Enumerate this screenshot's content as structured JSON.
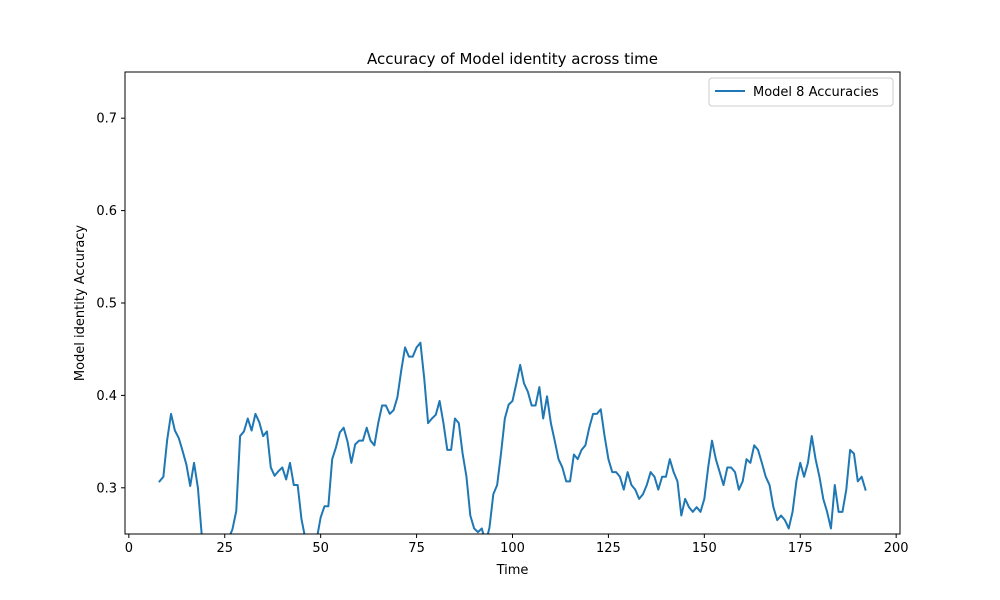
{
  "chart_data": {
    "type": "line",
    "title": "Accuracy of Model identity across time",
    "xlabel": "Time",
    "ylabel": "Model identity Accuracy",
    "xlim": [
      -1,
      201
    ],
    "ylim": [
      0.25,
      0.75
    ],
    "xticks": [
      0,
      25,
      50,
      75,
      100,
      125,
      150,
      175,
      200
    ],
    "yticks": [
      0.3,
      0.4,
      0.5,
      0.6,
      0.7
    ],
    "grid": false,
    "legend_position": "top-right",
    "series": [
      {
        "name": "Model 8 Accuracies",
        "color": "#1f77b4",
        "x": [
          8,
          9,
          10,
          11,
          12,
          13,
          14,
          15,
          16,
          17,
          18,
          19,
          20,
          21,
          22,
          23,
          24,
          25,
          26,
          27,
          28,
          29,
          30,
          31,
          32,
          33,
          34,
          35,
          36,
          37,
          38,
          39,
          40,
          41,
          42,
          43,
          44,
          45,
          46,
          47,
          48,
          49,
          50,
          51,
          52,
          53,
          54,
          55,
          56,
          57,
          58,
          59,
          60,
          61,
          62,
          63,
          64,
          65,
          66,
          67,
          68,
          69,
          70,
          71,
          72,
          73,
          74,
          75,
          76,
          77,
          78,
          79,
          80,
          81,
          82,
          83,
          84,
          85,
          86,
          87,
          88,
          89,
          90,
          91,
          92,
          93,
          94,
          95,
          96,
          97,
          98,
          99,
          100,
          101,
          102,
          103,
          104,
          105,
          106,
          107,
          108,
          109,
          110,
          111,
          112,
          113,
          114,
          115,
          116,
          117,
          118,
          119,
          120,
          121,
          122,
          123,
          124,
          125,
          126,
          127,
          128,
          129,
          130,
          131,
          132,
          133,
          134,
          135,
          136,
          137,
          138,
          139,
          140,
          141,
          142,
          143,
          144,
          145,
          146,
          147,
          148,
          149,
          150,
          151,
          152,
          153,
          154,
          155,
          156,
          157,
          158,
          159,
          160,
          161,
          162,
          163,
          164,
          165,
          166,
          167,
          168,
          169,
          170,
          171,
          172,
          173,
          174,
          175,
          176,
          177,
          178,
          179,
          180,
          181,
          182,
          183,
          184,
          185,
          186,
          187,
          188,
          189,
          190,
          191,
          192
        ],
        "y": [
          0.307,
          0.312,
          0.352,
          0.38,
          0.362,
          0.354,
          0.34,
          0.325,
          0.302,
          0.327,
          0.3,
          0.249,
          0.248,
          0.245,
          0.243,
          0.24,
          0.24,
          0.242,
          0.245,
          0.255,
          0.275,
          0.356,
          0.361,
          0.375,
          0.362,
          0.38,
          0.371,
          0.356,
          0.361,
          0.322,
          0.313,
          0.318,
          0.322,
          0.309,
          0.327,
          0.303,
          0.303,
          0.266,
          0.245,
          0.238,
          0.24,
          0.245,
          0.268,
          0.28,
          0.28,
          0.331,
          0.344,
          0.36,
          0.365,
          0.35,
          0.327,
          0.347,
          0.351,
          0.351,
          0.365,
          0.351,
          0.346,
          0.37,
          0.389,
          0.389,
          0.38,
          0.384,
          0.398,
          0.427,
          0.452,
          0.442,
          0.442,
          0.452,
          0.457,
          0.418,
          0.37,
          0.375,
          0.379,
          0.394,
          0.37,
          0.341,
          0.341,
          0.375,
          0.37,
          0.337,
          0.312,
          0.27,
          0.256,
          0.252,
          0.256,
          0.24,
          0.257,
          0.293,
          0.303,
          0.337,
          0.375,
          0.39,
          0.394,
          0.413,
          0.433,
          0.413,
          0.404,
          0.389,
          0.389,
          0.409,
          0.375,
          0.399,
          0.37,
          0.351,
          0.331,
          0.322,
          0.307,
          0.307,
          0.336,
          0.331,
          0.341,
          0.346,
          0.365,
          0.38,
          0.38,
          0.385,
          0.356,
          0.331,
          0.317,
          0.317,
          0.312,
          0.298,
          0.317,
          0.303,
          0.298,
          0.288,
          0.293,
          0.303,
          0.317,
          0.312,
          0.298,
          0.312,
          0.312,
          0.331,
          0.317,
          0.307,
          0.27,
          0.288,
          0.279,
          0.274,
          0.279,
          0.274,
          0.288,
          0.322,
          0.351,
          0.331,
          0.317,
          0.303,
          0.322,
          0.322,
          0.317,
          0.298,
          0.307,
          0.331,
          0.327,
          0.346,
          0.341,
          0.327,
          0.312,
          0.303,
          0.279,
          0.265,
          0.27,
          0.265,
          0.256,
          0.274,
          0.307,
          0.327,
          0.312,
          0.327,
          0.356,
          0.331,
          0.312,
          0.288,
          0.274,
          0.256,
          0.303,
          0.274,
          0.274,
          0.298,
          0.341,
          0.337,
          0.307,
          0.312,
          0.298
        ]
      }
    ]
  }
}
